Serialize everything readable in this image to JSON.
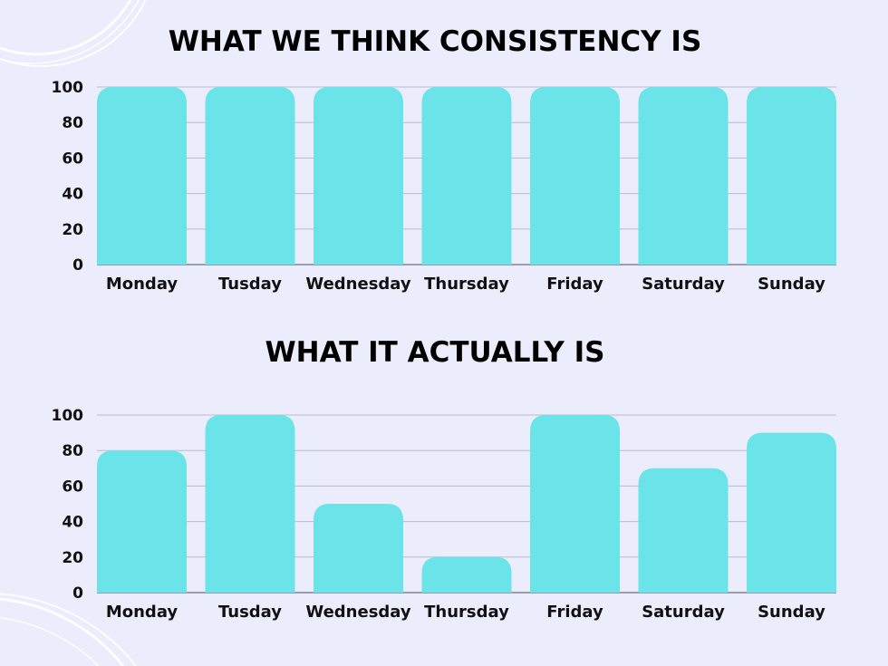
{
  "colors": {
    "background": "#ebedfc",
    "bar": "#6ae4e8",
    "grid": "#b8bccb",
    "text": "#000000"
  },
  "chart_data": [
    {
      "type": "bar",
      "title": "WHAT WE THINK CONSISTENCY IS",
      "categories": [
        "Monday",
        "Tusday",
        "Wednesday",
        "Thursday",
        "Friday",
        "Saturday",
        "Sunday"
      ],
      "values": [
        100,
        100,
        100,
        100,
        100,
        100,
        100
      ],
      "yticks": [
        "0",
        "20",
        "40",
        "60",
        "80",
        "100"
      ],
      "ylim": [
        0,
        100
      ],
      "grid": true
    },
    {
      "type": "bar",
      "title": "WHAT IT ACTUALLY IS",
      "categories": [
        "Monday",
        "Tusday",
        "Wednesday",
        "Thursday",
        "Friday",
        "Saturday",
        "Sunday"
      ],
      "values": [
        80,
        100,
        50,
        20,
        100,
        70,
        90
      ],
      "yticks": [
        "0",
        "20",
        "40",
        "60",
        "80",
        "100"
      ],
      "ylim": [
        0,
        100
      ],
      "grid": true
    }
  ]
}
